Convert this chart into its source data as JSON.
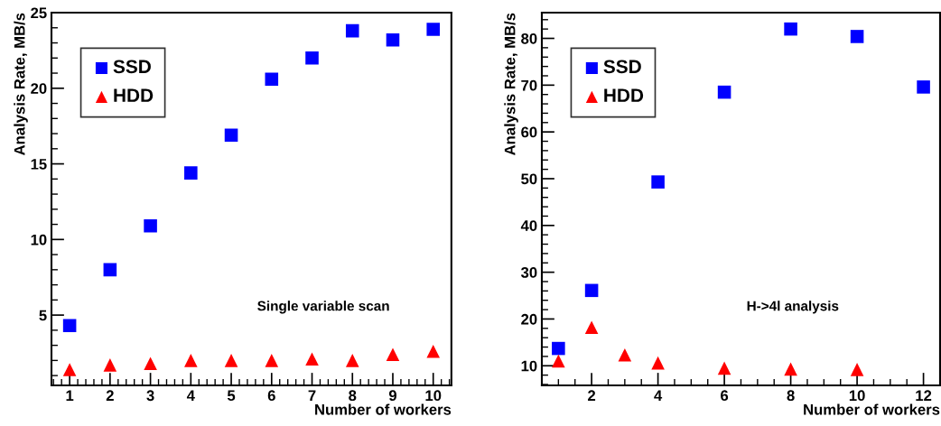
{
  "chart_data": [
    {
      "type": "scatter",
      "xlabel": "Number of workers",
      "ylabel": "Analysis Rate, MB/s",
      "x": [
        1,
        2,
        3,
        4,
        5,
        6,
        7,
        8,
        9,
        10
      ],
      "series": [
        {
          "name": "SSD",
          "color": "#0000ff",
          "marker": "square",
          "values": [
            4.3,
            8.0,
            10.9,
            14.4,
            16.9,
            20.6,
            22.0,
            23.8,
            23.2,
            23.9
          ]
        },
        {
          "name": "HDD",
          "color": "#ff0000",
          "marker": "triangle",
          "values": [
            1.4,
            1.7,
            1.8,
            2.0,
            2.0,
            2.0,
            2.1,
            2.0,
            2.4,
            2.6
          ]
        }
      ],
      "xlim": [
        0.55,
        10.45
      ],
      "xticks": [
        1,
        2,
        3,
        4,
        5,
        6,
        7,
        8,
        9,
        10
      ],
      "ylim": [
        0.35,
        25
      ],
      "yticks": [
        5,
        10,
        15,
        20,
        25
      ],
      "legend": "top left",
      "grid": false,
      "annotations": [
        "Single variable scan"
      ]
    },
    {
      "type": "scatter",
      "xlabel": "Number of workers",
      "ylabel": "Analysis Rate, MB/s",
      "series": [
        {
          "name": "SSD",
          "color": "#0000ff",
          "marker": "square",
          "x": [
            1,
            2,
            4,
            6,
            8,
            10,
            12
          ],
          "values": [
            13.7,
            26.1,
            49.3,
            68.5,
            82.0,
            80.4,
            69.6
          ]
        },
        {
          "name": "HDD",
          "color": "#ff0000",
          "marker": "triangle",
          "x": [
            1,
            2,
            3,
            4,
            6,
            8,
            10
          ],
          "values": [
            11.0,
            18.2,
            12.3,
            10.6,
            9.5,
            9.3,
            9.2
          ]
        }
      ],
      "xlim": [
        0.5,
        12.5
      ],
      "xticks": [
        2,
        4,
        6,
        8,
        10,
        12
      ],
      "ylim": [
        5.8,
        85.5
      ],
      "yticks": [
        10,
        20,
        30,
        40,
        50,
        60,
        70,
        80
      ],
      "legend": "top left",
      "grid": false,
      "annotations": [
        "H->4l analysis"
      ]
    }
  ]
}
